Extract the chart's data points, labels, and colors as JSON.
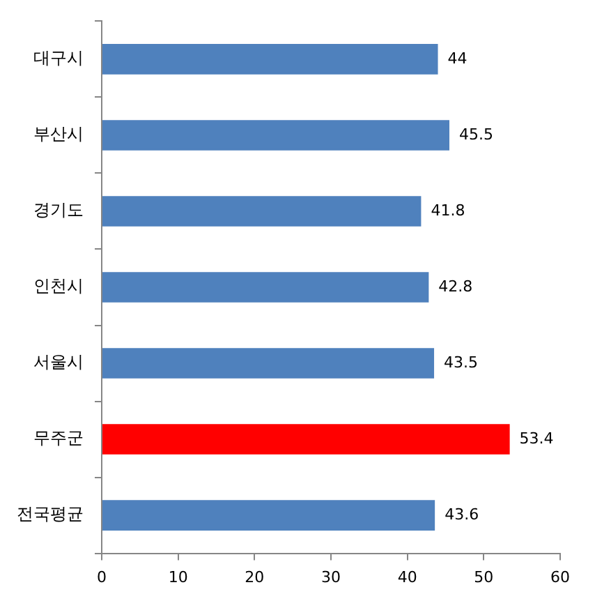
{
  "chart_data": {
    "type": "bar",
    "orientation": "horizontal",
    "categories": [
      "대구시",
      "부산시",
      "경기도",
      "인천시",
      "서울시",
      "무주군",
      "전국평균"
    ],
    "values": [
      44,
      45.5,
      41.8,
      42.8,
      43.5,
      53.4,
      43.6
    ],
    "colors": [
      "#4f81bd",
      "#4f81bd",
      "#4f81bd",
      "#4f81bd",
      "#4f81bd",
      "#ff0000",
      "#4f81bd"
    ],
    "xlim": [
      0,
      60
    ],
    "xticks": [
      0,
      10,
      20,
      30,
      40,
      50,
      60
    ],
    "grid": false,
    "legend": false,
    "data_labels": true
  }
}
